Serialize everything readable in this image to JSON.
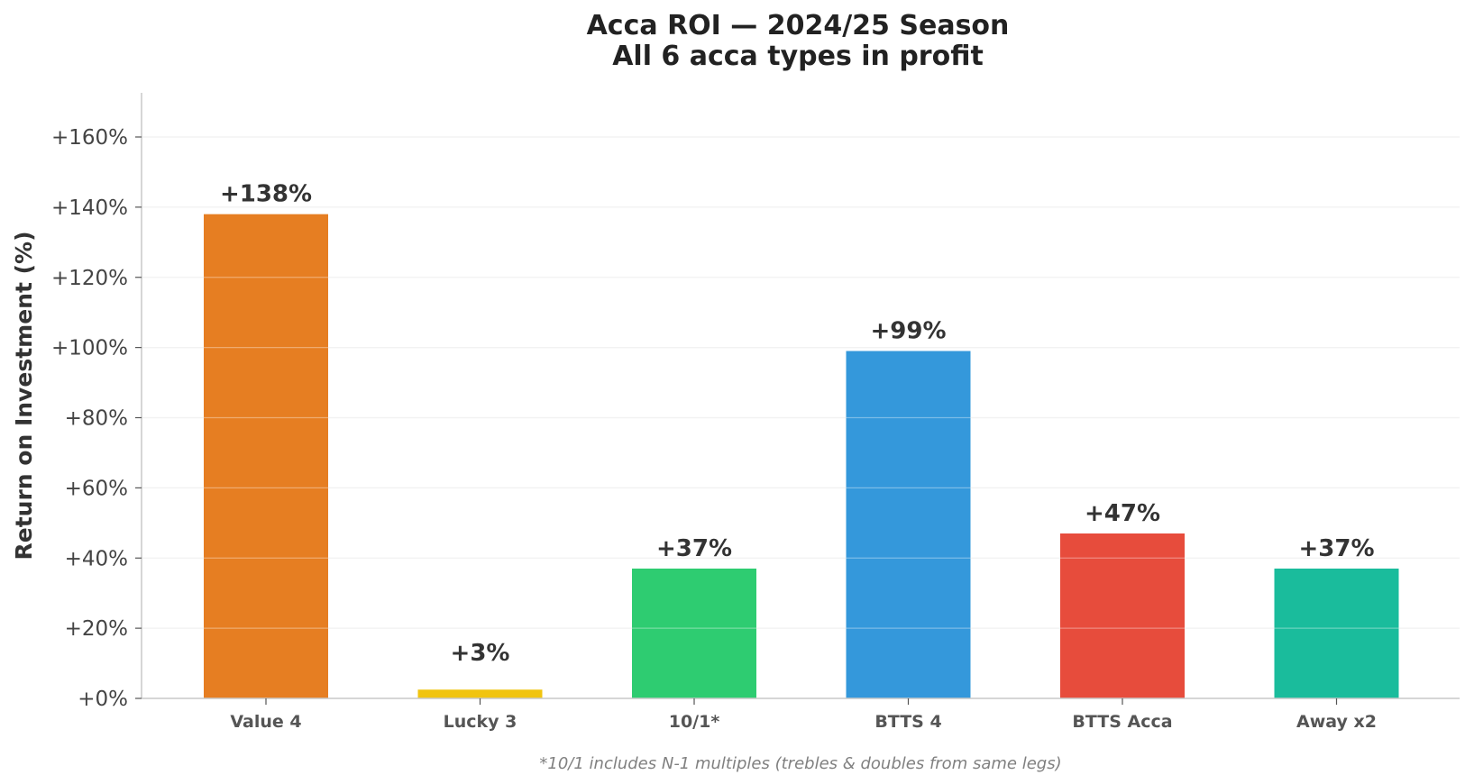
{
  "chart_data": {
    "type": "bar",
    "title": [
      "Acca ROI — 2024/25 Season",
      "All 6 acca types in profit"
    ],
    "ylabel": "Return on Investment (%)",
    "xlabel": "",
    "categories": [
      "Value 4",
      "Lucky 3",
      "10/1*",
      "BTTS 4",
      "BTTS Acca",
      "Away x2"
    ],
    "values": [
      138,
      2.5,
      37,
      99,
      47,
      37
    ],
    "data_labels": [
      "+138%",
      "+3%",
      "+37%",
      "+99%",
      "+47%",
      "+37%"
    ],
    "colors": [
      "#E67E22",
      "#F1C40F",
      "#2ECC71",
      "#3498DB",
      "#E74C3C",
      "#1ABC9C"
    ],
    "yticks": [
      0,
      20,
      40,
      60,
      80,
      100,
      120,
      140,
      160
    ],
    "ytick_labels": [
      "+0%",
      "+20%",
      "+40%",
      "+60%",
      "+80%",
      "+100%",
      "+120%",
      "+140%",
      "+160%"
    ],
    "ylim": [
      0,
      172
    ],
    "grid": true,
    "legend": "none",
    "footnote": "*10/1 includes N-1 multiples (trebles & doubles from same legs)"
  }
}
